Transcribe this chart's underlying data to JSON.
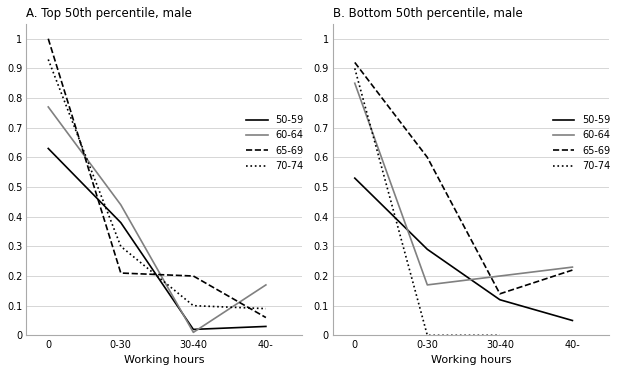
{
  "panel_A": {
    "title": "A. Top 50th percentile, male",
    "series": {
      "50-59": {
        "x": [
          0,
          1,
          2,
          3
        ],
        "y": [
          0.63,
          0.38,
          0.02,
          0.03
        ],
        "color": "#000000",
        "linestyle": "-",
        "linewidth": 1.2
      },
      "60-64": {
        "x": [
          0,
          1,
          2,
          3
        ],
        "y": [
          0.77,
          0.44,
          0.01,
          0.17
        ],
        "color": "#808080",
        "linestyle": "-",
        "linewidth": 1.2
      },
      "65-69": {
        "x": [
          0,
          1,
          2,
          3
        ],
        "y": [
          1.0,
          0.21,
          0.2,
          0.06
        ],
        "color": "#000000",
        "linestyle": "--",
        "linewidth": 1.2
      },
      "70-74": {
        "x": [
          0,
          1,
          2,
          3
        ],
        "y": [
          0.93,
          0.3,
          0.1,
          0.09
        ],
        "color": "#000000",
        "linestyle": ":",
        "linewidth": 1.2
      }
    }
  },
  "panel_B": {
    "title": "B. Bottom 50th percentile, male",
    "series": {
      "50-59": {
        "x": [
          0,
          1,
          2,
          3
        ],
        "y": [
          0.53,
          0.29,
          0.12,
          0.05
        ],
        "color": "#000000",
        "linestyle": "-",
        "linewidth": 1.2
      },
      "60-64": {
        "x": [
          0,
          1,
          2,
          3
        ],
        "y": [
          0.85,
          0.17,
          0.2,
          0.23
        ],
        "color": "#808080",
        "linestyle": "-",
        "linewidth": 1.2
      },
      "65-69": {
        "x": [
          0,
          1,
          2,
          3
        ],
        "y": [
          0.92,
          0.6,
          0.14,
          0.22
        ],
        "color": "#000000",
        "linestyle": "--",
        "linewidth": 1.2
      },
      "70-74": {
        "x": [
          0,
          1,
          2
        ],
        "y": [
          0.9,
          0.0,
          0.0
        ],
        "color": "#000000",
        "linestyle": ":",
        "linewidth": 1.2
      }
    }
  },
  "xtick_labels": [
    "0",
    "0-30",
    "30-40",
    "40-"
  ],
  "xlabel": "Working hours",
  "ylim": [
    0,
    1.05
  ],
  "yticks": [
    0,
    0.1,
    0.2,
    0.3,
    0.4,
    0.5,
    0.6,
    0.7,
    0.8,
    0.9,
    1
  ],
  "ytick_labels": [
    "0",
    "0.1",
    "0.2",
    "0.3",
    "0.4",
    "0.5",
    "0.6",
    "0.7",
    "0.8",
    "0.9",
    "1"
  ],
  "legend_labels": [
    "50-59",
    "60-64",
    "65-69",
    "70-74"
  ],
  "bg_color": "#ffffff",
  "grid_color": "#d0d0d0",
  "title_fontsize": 8.5,
  "tick_fontsize": 7,
  "xlabel_fontsize": 8
}
